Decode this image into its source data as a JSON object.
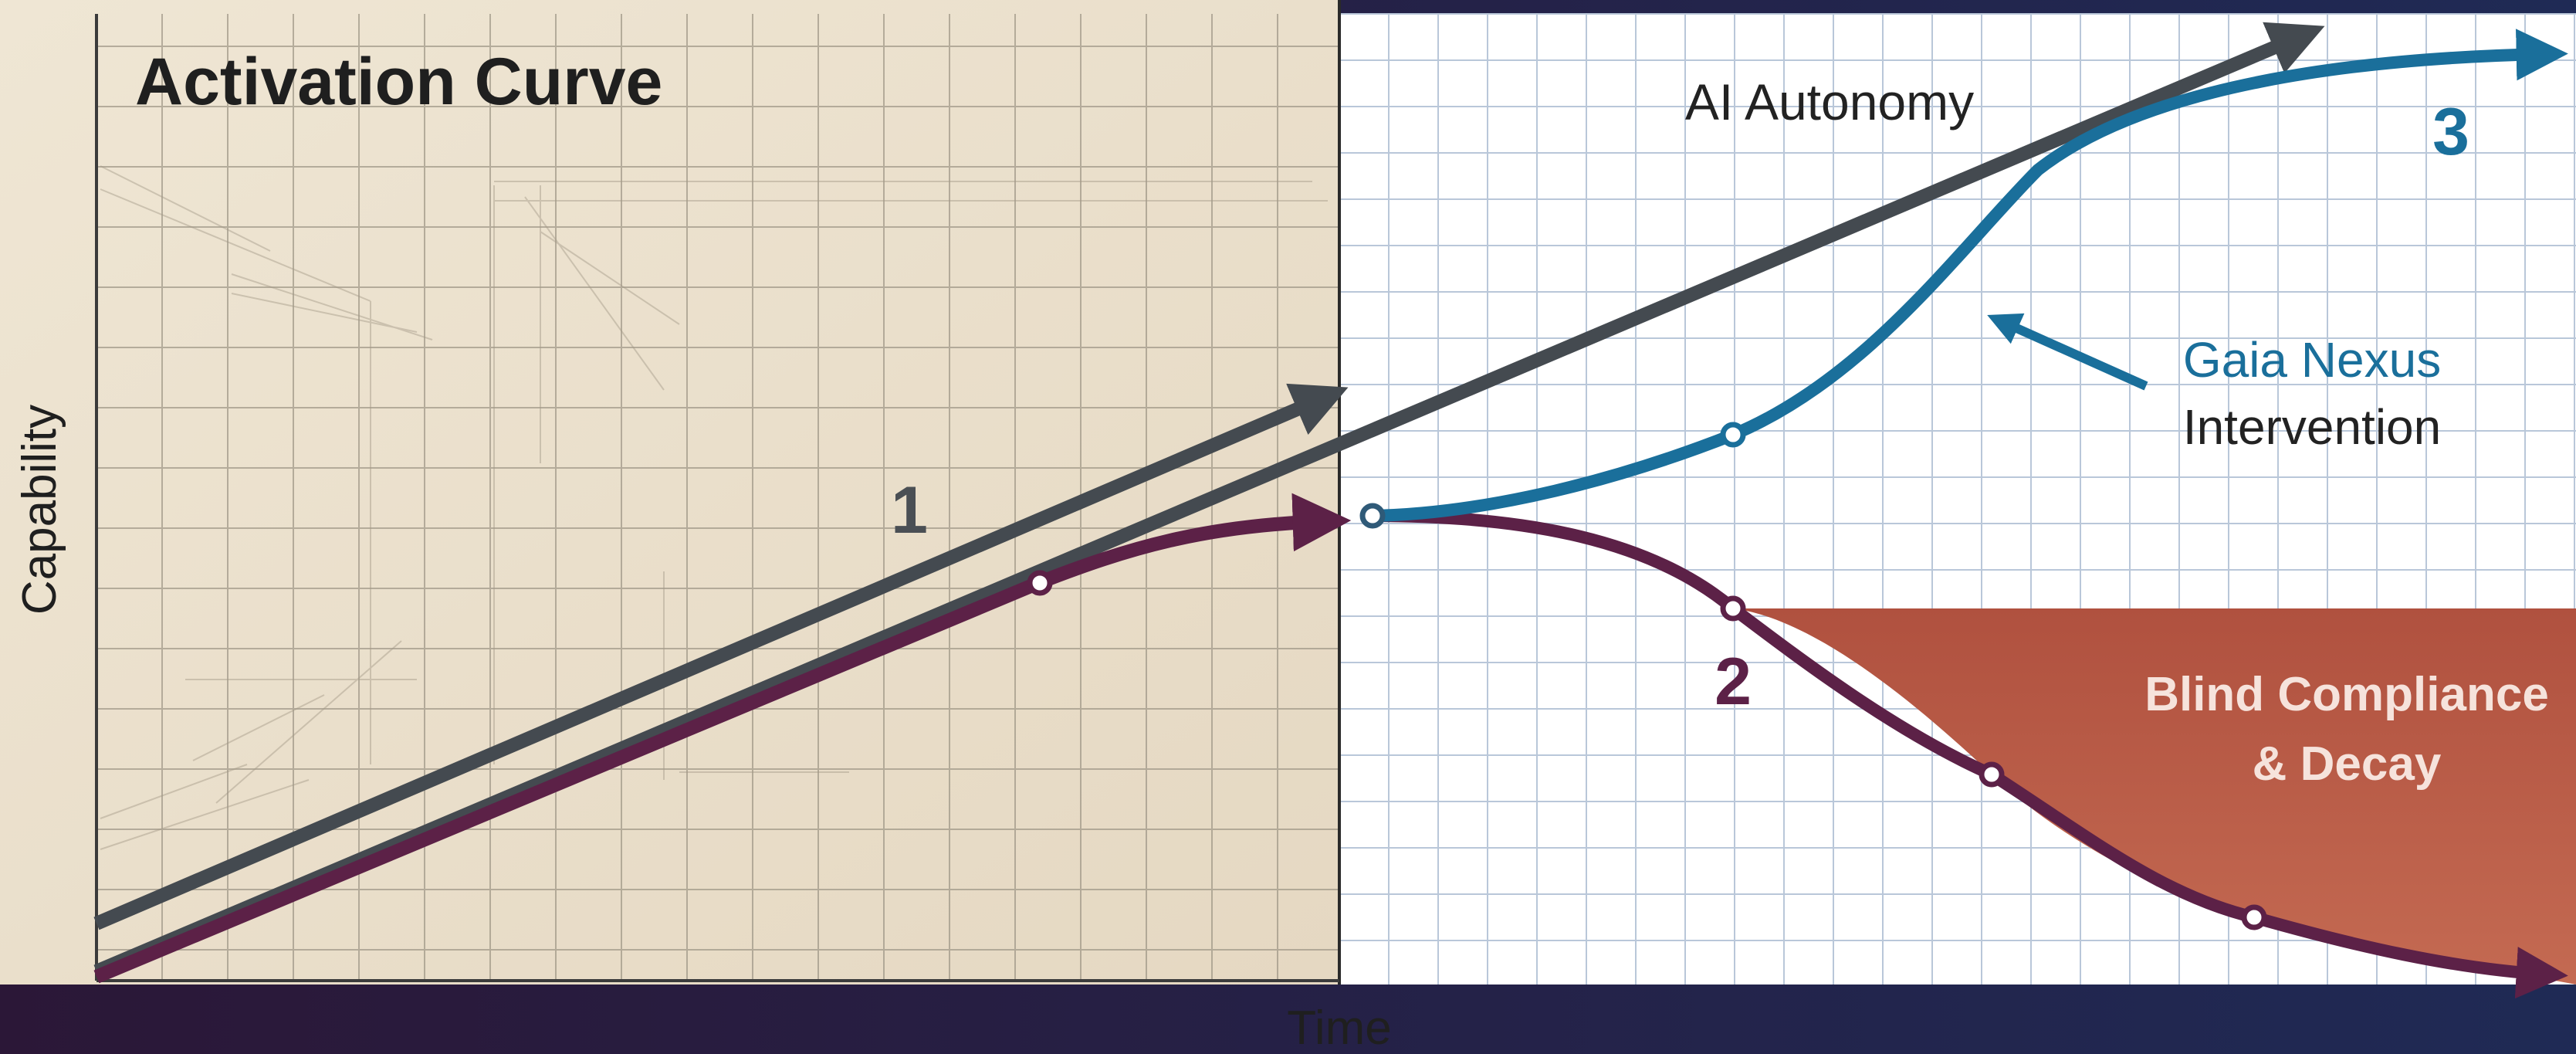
{
  "title": "Activation Curve",
  "axes": {
    "x_label": "Time",
    "y_label": "Capability"
  },
  "markers": {
    "one": "1",
    "two": "2",
    "three": "3"
  },
  "labels": {
    "autonomy": "AI Autonomy",
    "intervention_line1": "Gaia Nexus",
    "intervention_line2": "Intervention",
    "decay_line1": "Blind Compliance",
    "decay_line2": "& Decay"
  },
  "colors": {
    "paper": "#ede2cf",
    "grid_paper": "#9d9585",
    "right_bg": "#ffffff",
    "grid_right": "#b9c7d9",
    "dark_frame": "#2a1838",
    "autonomy_arrow": "#444a50",
    "baseline_curve": "#5c2147",
    "intervention_curve": "#1a6f9b",
    "decay_fill": "#b5533e",
    "decay_text": "#f6e3dc"
  }
}
